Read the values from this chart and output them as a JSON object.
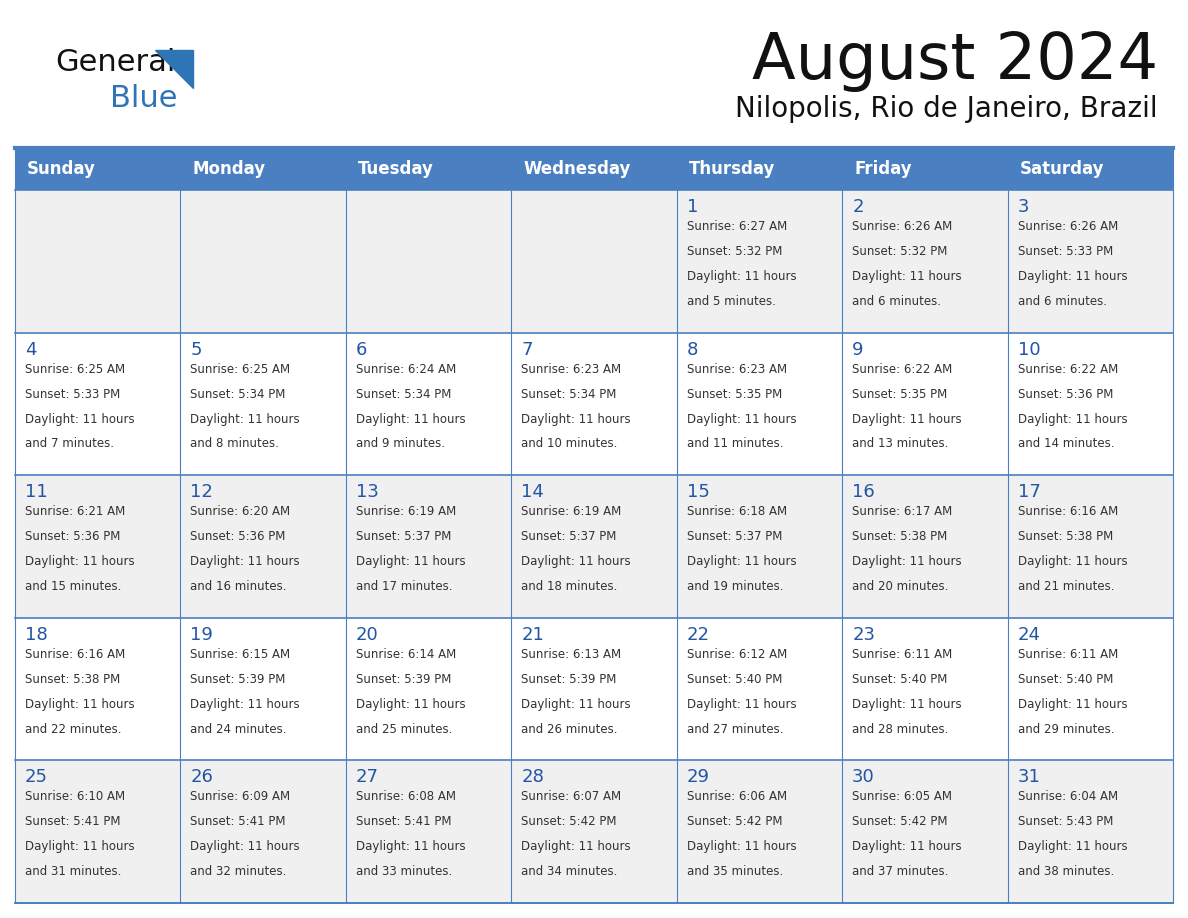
{
  "title": "August 2024",
  "subtitle": "Nilopolis, Rio de Janeiro, Brazil",
  "days_of_week": [
    "Sunday",
    "Monday",
    "Tuesday",
    "Wednesday",
    "Thursday",
    "Friday",
    "Saturday"
  ],
  "header_bg": "#4a7fc1",
  "header_text": "#FFFFFF",
  "cell_bg_odd": "#F0F0F0",
  "cell_bg_even": "#FFFFFF",
  "day_num_color": "#2255a4",
  "data_text_color": "#333333",
  "border_color": "#4a7fc1",
  "title_color": "#111111",
  "logo_general_color": "#111111",
  "logo_blue_color": "#2E75B6",
  "logo_triangle_color": "#2E75B6",
  "weeks": [
    [
      {
        "day": null,
        "sunrise": null,
        "sunset": null,
        "daylight": null
      },
      {
        "day": null,
        "sunrise": null,
        "sunset": null,
        "daylight": null
      },
      {
        "day": null,
        "sunrise": null,
        "sunset": null,
        "daylight": null
      },
      {
        "day": null,
        "sunrise": null,
        "sunset": null,
        "daylight": null
      },
      {
        "day": 1,
        "sunrise": "6:27 AM",
        "sunset": "5:32 PM",
        "daylight": "11 hours and 5 minutes."
      },
      {
        "day": 2,
        "sunrise": "6:26 AM",
        "sunset": "5:32 PM",
        "daylight": "11 hours and 6 minutes."
      },
      {
        "day": 3,
        "sunrise": "6:26 AM",
        "sunset": "5:33 PM",
        "daylight": "11 hours and 6 minutes."
      }
    ],
    [
      {
        "day": 4,
        "sunrise": "6:25 AM",
        "sunset": "5:33 PM",
        "daylight": "11 hours and 7 minutes."
      },
      {
        "day": 5,
        "sunrise": "6:25 AM",
        "sunset": "5:34 PM",
        "daylight": "11 hours and 8 minutes."
      },
      {
        "day": 6,
        "sunrise": "6:24 AM",
        "sunset": "5:34 PM",
        "daylight": "11 hours and 9 minutes."
      },
      {
        "day": 7,
        "sunrise": "6:23 AM",
        "sunset": "5:34 PM",
        "daylight": "11 hours and 10 minutes."
      },
      {
        "day": 8,
        "sunrise": "6:23 AM",
        "sunset": "5:35 PM",
        "daylight": "11 hours and 11 minutes."
      },
      {
        "day": 9,
        "sunrise": "6:22 AM",
        "sunset": "5:35 PM",
        "daylight": "11 hours and 13 minutes."
      },
      {
        "day": 10,
        "sunrise": "6:22 AM",
        "sunset": "5:36 PM",
        "daylight": "11 hours and 14 minutes."
      }
    ],
    [
      {
        "day": 11,
        "sunrise": "6:21 AM",
        "sunset": "5:36 PM",
        "daylight": "11 hours and 15 minutes."
      },
      {
        "day": 12,
        "sunrise": "6:20 AM",
        "sunset": "5:36 PM",
        "daylight": "11 hours and 16 minutes."
      },
      {
        "day": 13,
        "sunrise": "6:19 AM",
        "sunset": "5:37 PM",
        "daylight": "11 hours and 17 minutes."
      },
      {
        "day": 14,
        "sunrise": "6:19 AM",
        "sunset": "5:37 PM",
        "daylight": "11 hours and 18 minutes."
      },
      {
        "day": 15,
        "sunrise": "6:18 AM",
        "sunset": "5:37 PM",
        "daylight": "11 hours and 19 minutes."
      },
      {
        "day": 16,
        "sunrise": "6:17 AM",
        "sunset": "5:38 PM",
        "daylight": "11 hours and 20 minutes."
      },
      {
        "day": 17,
        "sunrise": "6:16 AM",
        "sunset": "5:38 PM",
        "daylight": "11 hours and 21 minutes."
      }
    ],
    [
      {
        "day": 18,
        "sunrise": "6:16 AM",
        "sunset": "5:38 PM",
        "daylight": "11 hours and 22 minutes."
      },
      {
        "day": 19,
        "sunrise": "6:15 AM",
        "sunset": "5:39 PM",
        "daylight": "11 hours and 24 minutes."
      },
      {
        "day": 20,
        "sunrise": "6:14 AM",
        "sunset": "5:39 PM",
        "daylight": "11 hours and 25 minutes."
      },
      {
        "day": 21,
        "sunrise": "6:13 AM",
        "sunset": "5:39 PM",
        "daylight": "11 hours and 26 minutes."
      },
      {
        "day": 22,
        "sunrise": "6:12 AM",
        "sunset": "5:40 PM",
        "daylight": "11 hours and 27 minutes."
      },
      {
        "day": 23,
        "sunrise": "6:11 AM",
        "sunset": "5:40 PM",
        "daylight": "11 hours and 28 minutes."
      },
      {
        "day": 24,
        "sunrise": "6:11 AM",
        "sunset": "5:40 PM",
        "daylight": "11 hours and 29 minutes."
      }
    ],
    [
      {
        "day": 25,
        "sunrise": "6:10 AM",
        "sunset": "5:41 PM",
        "daylight": "11 hours and 31 minutes."
      },
      {
        "day": 26,
        "sunrise": "6:09 AM",
        "sunset": "5:41 PM",
        "daylight": "11 hours and 32 minutes."
      },
      {
        "day": 27,
        "sunrise": "6:08 AM",
        "sunset": "5:41 PM",
        "daylight": "11 hours and 33 minutes."
      },
      {
        "day": 28,
        "sunrise": "6:07 AM",
        "sunset": "5:42 PM",
        "daylight": "11 hours and 34 minutes."
      },
      {
        "day": 29,
        "sunrise": "6:06 AM",
        "sunset": "5:42 PM",
        "daylight": "11 hours and 35 minutes."
      },
      {
        "day": 30,
        "sunrise": "6:05 AM",
        "sunset": "5:42 PM",
        "daylight": "11 hours and 37 minutes."
      },
      {
        "day": 31,
        "sunrise": "6:04 AM",
        "sunset": "5:43 PM",
        "daylight": "11 hours and 38 minutes."
      }
    ]
  ]
}
